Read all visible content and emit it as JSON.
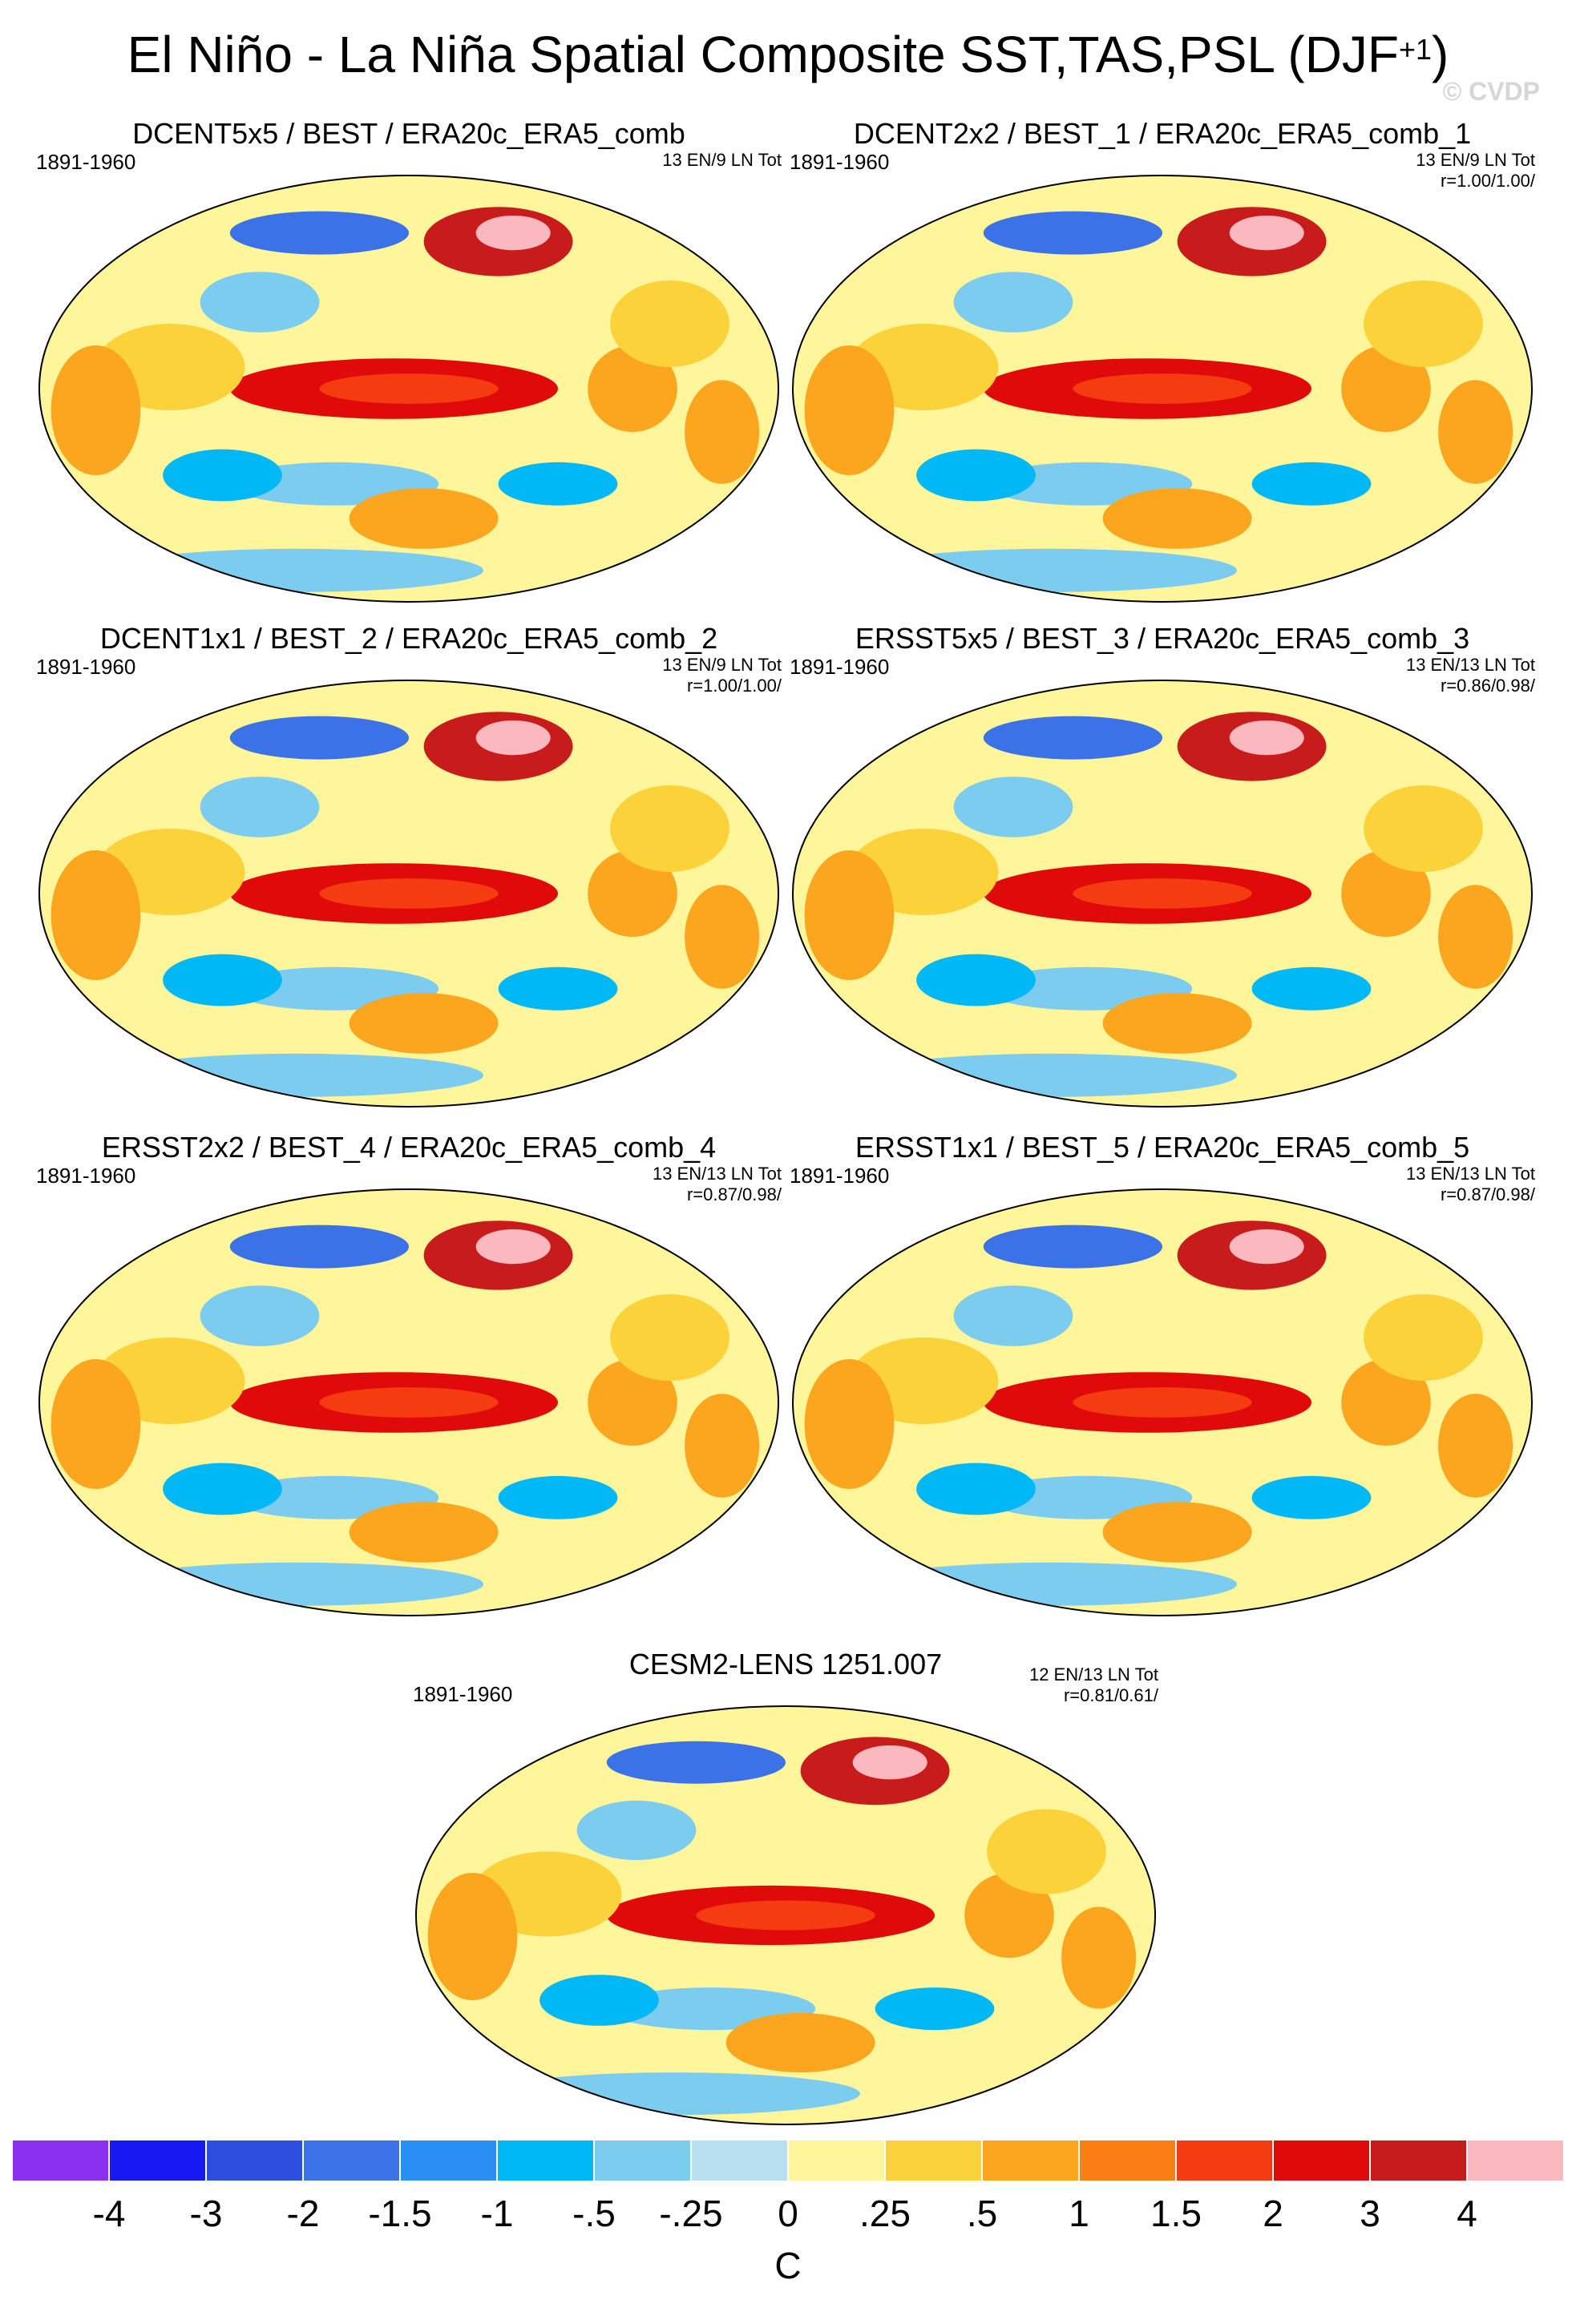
{
  "title": {
    "main": "El Niño - La Niña Spatial Composite SST,TAS,PSL (DJF",
    "superscript": "+1",
    "close": ")"
  },
  "copyright": "© CVDP",
  "panels": [
    {
      "title": "DCENT5x5 / BEST / ERA20c_ERA5_comb",
      "period": "1891-1960",
      "stat1": "13 EN/9 LN Tot",
      "stat2": ""
    },
    {
      "title": "DCENT2x2 / BEST_1 / ERA20c_ERA5_comb_1",
      "period": "1891-1960",
      "stat1": "13 EN/9 LN Tot",
      "stat2": "r=1.00/1.00/"
    },
    {
      "title": "DCENT1x1 / BEST_2 / ERA20c_ERA5_comb_2",
      "period": "1891-1960",
      "stat1": "13 EN/9 LN Tot",
      "stat2": "r=1.00/1.00/"
    },
    {
      "title": "ERSST5x5 / BEST_3 / ERA20c_ERA5_comb_3",
      "period": "1891-1960",
      "stat1": "13 EN/13 LN Tot",
      "stat2": "r=0.86/0.98/"
    },
    {
      "title": "ERSST2x2 / BEST_4 / ERA20c_ERA5_comb_4",
      "period": "1891-1960",
      "stat1": "13 EN/13 LN Tot",
      "stat2": "r=0.87/0.98/"
    },
    {
      "title": "ERSST1x1 / BEST_5 / ERA20c_ERA5_comb_5",
      "period": "1891-1960",
      "stat1": "13 EN/13 LN Tot",
      "stat2": "r=0.87/0.98/"
    },
    {
      "title": "CESM2-LENS 1251.007",
      "period": "1891-1960",
      "stat1": "12 EN/13 LN Tot",
      "stat2": "r=0.81/0.61/"
    }
  ],
  "colorbar": {
    "colors": [
      "#8b2ff0",
      "#1818f5",
      "#2c4fe0",
      "#3b72e8",
      "#2a8ff5",
      "#00b8f5",
      "#7cccf0",
      "#b8dff0",
      "#fff59a",
      "#fcd23a",
      "#fca51e",
      "#fb7e15",
      "#f53b10",
      "#e00a0a",
      "#c81c1c",
      "#fcb8bf"
    ],
    "ticks": [
      "-4",
      "-3",
      "-2",
      "-1.5",
      "-1",
      "-.5",
      "-.25",
      "0",
      ".25",
      ".5",
      "1",
      "1.5",
      "2",
      "3",
      "4"
    ],
    "unit": "C"
  }
}
